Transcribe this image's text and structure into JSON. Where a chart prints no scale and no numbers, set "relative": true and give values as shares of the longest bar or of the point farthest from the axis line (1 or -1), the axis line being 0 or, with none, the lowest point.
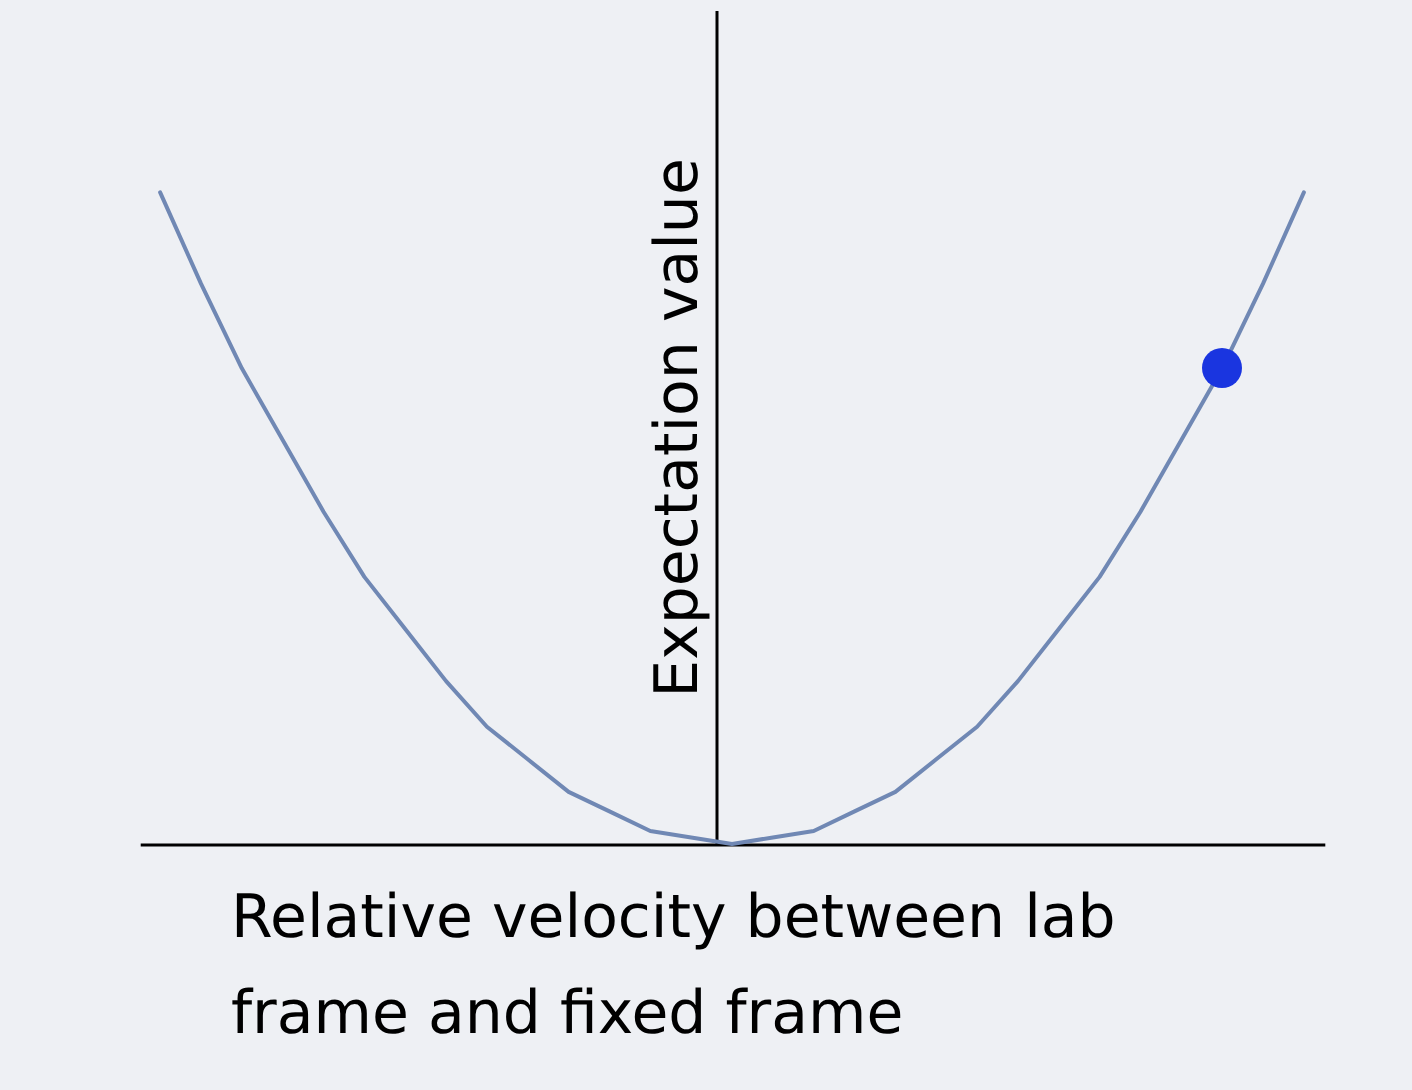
{
  "chart_data": {
    "type": "line",
    "relative": true,
    "xlabel": "Relative velocity between lab frame and fixed frame",
    "ylabel": "Expectation value",
    "categories": [
      null,
      null,
      null,
      null,
      null,
      null,
      null,
      null,
      null,
      null,
      null,
      null,
      null,
      null,
      null,
      null,
      null,
      null,
      null,
      null,
      null,
      null,
      null,
      null,
      null,
      null,
      null,
      null,
      null
    ],
    "series": [
      {
        "type": "line",
        "color": "#7088b4",
        "values": [
          1,
          0.86,
          0.73,
          0.62,
          0.51,
          0.41,
          0.33,
          0.25,
          0.18,
          0.13,
          0.08,
          0.05,
          0.02,
          0.01,
          0,
          0.01,
          0.02,
          0.05,
          0.08,
          0.13,
          0.18,
          0.25,
          0.33,
          0.41,
          0.51,
          0.62,
          0.73,
          0.86,
          1
        ]
      }
    ]
  }
}
